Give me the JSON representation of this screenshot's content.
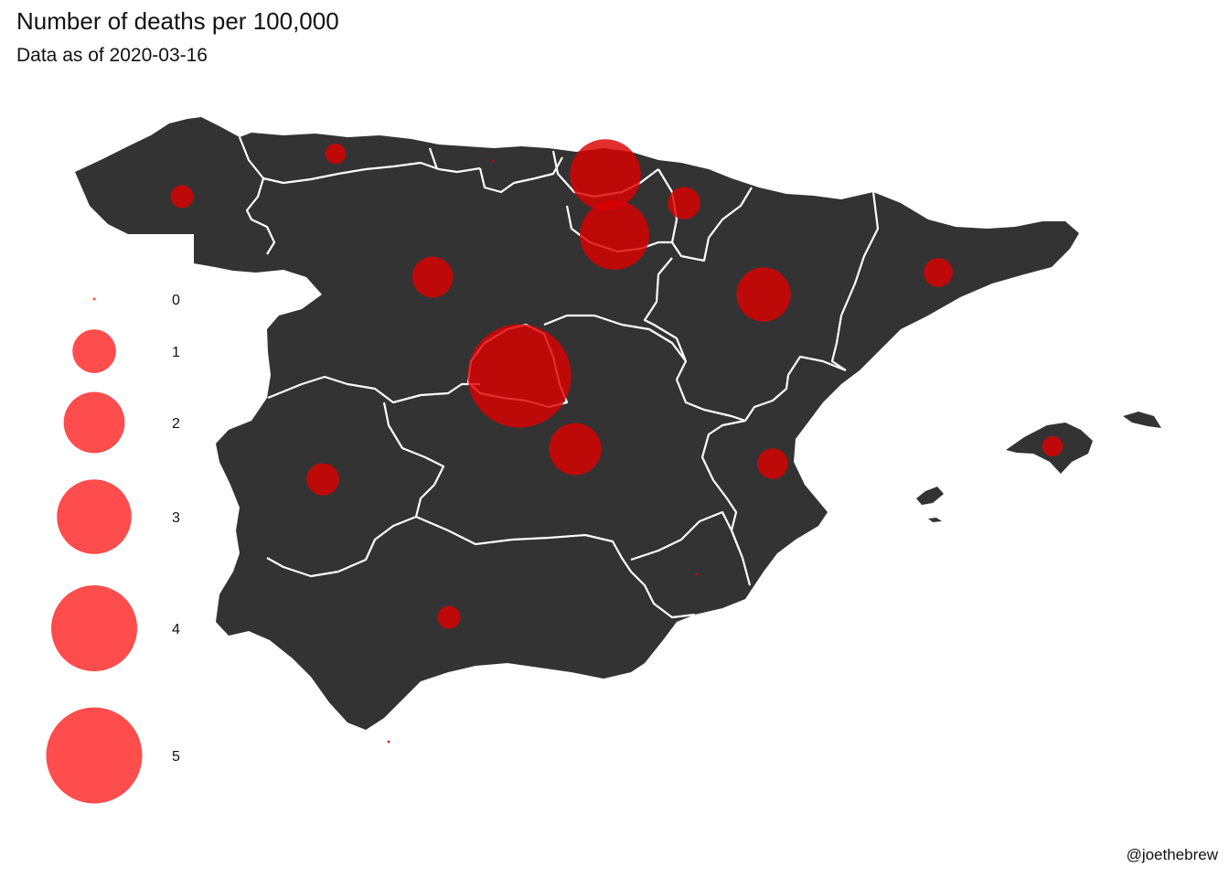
{
  "title": "Number of deaths per 100,000",
  "subtitle": "Data as of 2020-03-16",
  "credit": "@joethebrew",
  "colors": {
    "land": "#333333",
    "border": "#ffffff",
    "bubble": "#dd0000",
    "legend_bubble": "#ff3333"
  },
  "chart_data": {
    "type": "bubble-map",
    "legend": {
      "values": [
        0,
        1,
        2,
        3,
        4,
        5
      ],
      "labels": [
        "0",
        "1",
        "2",
        "3",
        "4",
        "5"
      ]
    },
    "regions": [
      {
        "name": "Galicia",
        "value": 0.25
      },
      {
        "name": "Asturias",
        "value": 0.2
      },
      {
        "name": "Cantabria",
        "value": 0.0
      },
      {
        "name": "País Vasco",
        "value": 2.4
      },
      {
        "name": "Navarra",
        "value": 0.5
      },
      {
        "name": "La Rioja",
        "value": 2.3
      },
      {
        "name": "Castilla y León",
        "value": 0.8
      },
      {
        "name": "Aragón",
        "value": 1.4
      },
      {
        "name": "Cataluña",
        "value": 0.4
      },
      {
        "name": "Madrid",
        "value": 5.1
      },
      {
        "name": "Castilla-La Mancha",
        "value": 1.3
      },
      {
        "name": "Extremadura",
        "value": 0.5
      },
      {
        "name": "Comunidad Valenciana",
        "value": 0.45
      },
      {
        "name": "Illes Balears",
        "value": 0.2
      },
      {
        "name": "Murcia",
        "value": 0.0
      },
      {
        "name": "Andalucía",
        "value": 0.25
      },
      {
        "name": "Ceuta",
        "value": 0.0
      }
    ]
  }
}
